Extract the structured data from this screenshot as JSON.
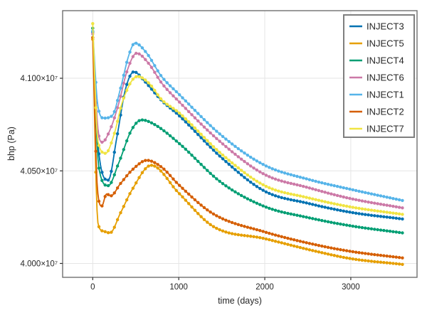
{
  "chart_data": {
    "type": "line",
    "title": "",
    "xlabel": "time (days)",
    "ylabel": "bhp (Pa)",
    "xlim": [
      -350,
      3770
    ],
    "ylim": [
      39925000,
      41365000
    ],
    "grid": true,
    "legend_position": "top-right",
    "xticks": [
      0,
      1000,
      2000,
      3000
    ],
    "xtick_labels": [
      "0",
      "1000",
      "2000",
      "3000"
    ],
    "yticks": [
      40000000,
      40500000,
      41000000
    ],
    "ytick_labels": [
      "4.000×10⁷",
      "4.050×10⁷",
      "4.100×10⁷"
    ],
    "y_unit": "Pa",
    "x_unit": "days",
    "marker": "circle",
    "series": [
      {
        "name": "INJECT3",
        "color": "#0072B2",
        "points": [
          [
            0,
            41250000
          ],
          [
            70,
            40600000
          ],
          [
            180,
            40450000
          ],
          [
            280,
            40680000
          ],
          [
            380,
            40940000
          ],
          [
            480,
            41035000
          ],
          [
            600,
            40985000
          ],
          [
            800,
            40880000
          ],
          [
            1000,
            40800000
          ],
          [
            1500,
            40570000
          ],
          [
            2000,
            40390000
          ],
          [
            2500,
            40325000
          ],
          [
            3000,
            40276000
          ],
          [
            3600,
            40240000
          ]
        ]
      },
      {
        "name": "INJECT5",
        "color": "#E69F00",
        "points": [
          [
            0,
            41210000
          ],
          [
            60,
            40220000
          ],
          [
            120,
            40175000
          ],
          [
            200,
            40165000
          ],
          [
            320,
            40270000
          ],
          [
            460,
            40400000
          ],
          [
            680,
            40530000
          ],
          [
            1000,
            40380000
          ],
          [
            1400,
            40200000
          ],
          [
            2000,
            40134000
          ],
          [
            2600,
            40065000
          ],
          [
            3000,
            40026000
          ],
          [
            3600,
            39995000
          ]
        ]
      },
      {
        "name": "INJECT4",
        "color": "#009E73",
        "points": [
          [
            0,
            41270000
          ],
          [
            70,
            40520000
          ],
          [
            180,
            40420000
          ],
          [
            300,
            40540000
          ],
          [
            450,
            40720000
          ],
          [
            570,
            40775000
          ],
          [
            720,
            40750000
          ],
          [
            1000,
            40650000
          ],
          [
            1500,
            40435000
          ],
          [
            2000,
            40307000
          ],
          [
            2500,
            40248000
          ],
          [
            3000,
            40203000
          ],
          [
            3600,
            40165000
          ]
        ]
      },
      {
        "name": "INJECT6",
        "color": "#CC79A7",
        "points": [
          [
            0,
            41240000
          ],
          [
            60,
            40730000
          ],
          [
            110,
            40655000
          ],
          [
            200,
            40720000
          ],
          [
            300,
            40860000
          ],
          [
            400,
            41040000
          ],
          [
            510,
            41135000
          ],
          [
            650,
            41080000
          ],
          [
            800,
            40975000
          ],
          [
            1000,
            40875000
          ],
          [
            1500,
            40650000
          ],
          [
            2000,
            40480000
          ],
          [
            2500,
            40410000
          ],
          [
            3000,
            40350000
          ],
          [
            3600,
            40300000
          ]
        ]
      },
      {
        "name": "INJECT1",
        "color": "#56B4E9",
        "points": [
          [
            0,
            41255000
          ],
          [
            60,
            40850000
          ],
          [
            130,
            40785000
          ],
          [
            230,
            40800000
          ],
          [
            320,
            40940000
          ],
          [
            420,
            41125000
          ],
          [
            490,
            41190000
          ],
          [
            620,
            41140000
          ],
          [
            800,
            41010000
          ],
          [
            1000,
            40915000
          ],
          [
            1500,
            40690000
          ],
          [
            2000,
            40530000
          ],
          [
            2500,
            40455000
          ],
          [
            3000,
            40400000
          ],
          [
            3600,
            40340000
          ]
        ]
      },
      {
        "name": "INJECT2",
        "color": "#D55E00",
        "points": [
          [
            0,
            41220000
          ],
          [
            55,
            40400000
          ],
          [
            105,
            40310000
          ],
          [
            160,
            40375000
          ],
          [
            210,
            40365000
          ],
          [
            320,
            40430000
          ],
          [
            470,
            40510000
          ],
          [
            630,
            40557000
          ],
          [
            800,
            40520000
          ],
          [
            1000,
            40425000
          ],
          [
            1400,
            40268000
          ],
          [
            2000,
            40170000
          ],
          [
            2600,
            40100000
          ],
          [
            3000,
            40065000
          ],
          [
            3600,
            40030000
          ]
        ]
      },
      {
        "name": "INJECT7",
        "color": "#F0E442",
        "points": [
          [
            0,
            41295000
          ],
          [
            60,
            40660000
          ],
          [
            150,
            40595000
          ],
          [
            250,
            40700000
          ],
          [
            350,
            40880000
          ],
          [
            520,
            41010000
          ],
          [
            660,
            40970000
          ],
          [
            800,
            40885000
          ],
          [
            1000,
            40815000
          ],
          [
            1500,
            40590000
          ],
          [
            2000,
            40420000
          ],
          [
            2500,
            40355000
          ],
          [
            3000,
            40305000
          ],
          [
            3600,
            40265000
          ]
        ]
      }
    ],
    "legend_entries": [
      "INJECT3",
      "INJECT5",
      "INJECT4",
      "INJECT6",
      "INJECT1",
      "INJECT2",
      "INJECT7"
    ]
  },
  "style_colors": {
    "grid": "#e5e5e5",
    "frame": "#707070",
    "tick": "#333333",
    "text": "#262626",
    "legend_border": "#7f7f7f",
    "background": "#ffffff"
  }
}
